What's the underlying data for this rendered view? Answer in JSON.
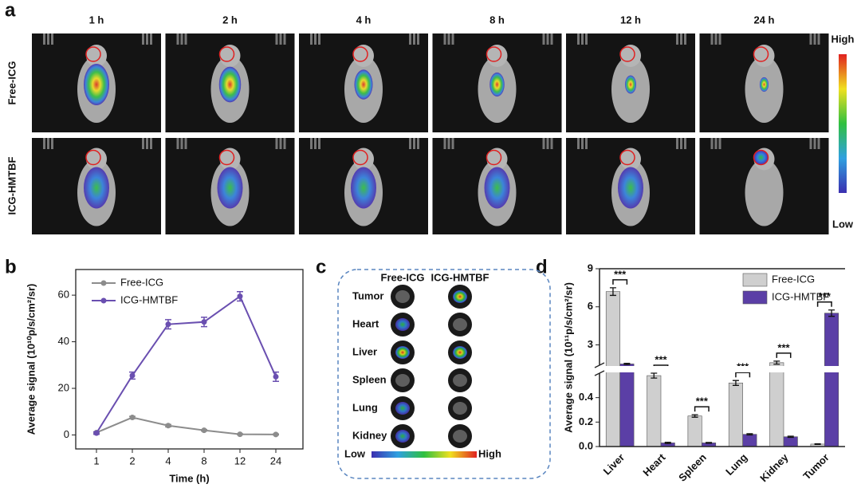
{
  "panel_labels": [
    "a",
    "b",
    "c",
    "d"
  ],
  "imaging": {
    "times": [
      "1 h",
      "2 h",
      "4 h",
      "8 h",
      "12 h",
      "24 h"
    ],
    "rows": [
      "Free-ICG",
      "ICG-HMTBF"
    ],
    "scale": {
      "high": "High",
      "low": "Low"
    }
  },
  "ex_vivo": {
    "columns": [
      "Free-ICG",
      "ICG-HMTBF"
    ],
    "organs": [
      "Tumor",
      "Heart",
      "Liver",
      "Spleen",
      "Lung",
      "Kidney"
    ],
    "scale": {
      "low": "Low",
      "high": "High"
    }
  },
  "chart_data": [
    {
      "type": "line",
      "xlabel": "Time (h)",
      "ylabel": "Average signal (10¹⁰p/s/cm²/sr)",
      "categories": [
        "1",
        "2",
        "4",
        "8",
        "12",
        "24"
      ],
      "series": [
        {
          "name": "Free-ICG",
          "color": "#8c8c8c",
          "values": [
            1,
            7.5,
            4,
            2,
            0.3,
            0.2
          ],
          "errors": [
            0.3,
            0.5,
            0.5,
            0.3,
            0.2,
            0.2
          ]
        },
        {
          "name": "ICG-HMTBF",
          "color": "#6a4fb0",
          "values": [
            0.8,
            25.5,
            47.5,
            48.5,
            59.5,
            25
          ],
          "errors": [
            0.5,
            1.5,
            2,
            2,
            2,
            2
          ]
        }
      ],
      "ylim": [
        -6,
        71
      ],
      "yticks": [
        0,
        20,
        40,
        60
      ],
      "legend": "upper left"
    },
    {
      "type": "bar",
      "ylabel": "Average signal (10¹¹p/s/cm²/sr)",
      "categories": [
        "Liver",
        "Heart",
        "Spleen",
        "Lung",
        "Kidney",
        "Tumor"
      ],
      "series": [
        {
          "name": "Free-ICG",
          "color": "#cfcfcf",
          "values": [
            7.2,
            0.58,
            0.25,
            0.52,
            1.6,
            0.02
          ],
          "errors": [
            0.3,
            0.02,
            0.01,
            0.02,
            0.12,
            0.003
          ]
        },
        {
          "name": "ICG-HMTBF",
          "color": "#5b3fa6",
          "values": [
            1.5,
            0.03,
            0.03,
            0.1,
            0.08,
            5.5
          ],
          "errors": [
            0.05,
            0.005,
            0.003,
            0.005,
            0.005,
            0.25
          ]
        }
      ],
      "ylim": [
        0,
        9
      ],
      "axis_break": [
        0.6,
        1.4
      ],
      "yticks": [
        {
          "value": 0,
          "label": "0.0"
        },
        0.2,
        0.4,
        3,
        6,
        9
      ],
      "annotations": [
        "***",
        "***",
        "***",
        "***",
        "***",
        "***"
      ],
      "legend": "upper right"
    }
  ]
}
